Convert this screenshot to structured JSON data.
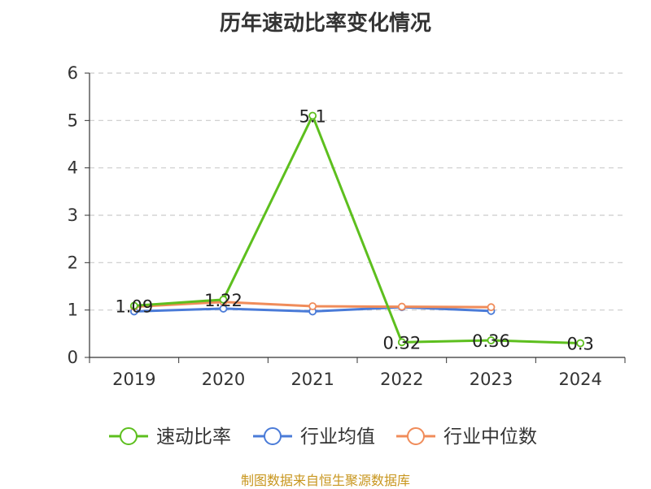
{
  "chart_data": {
    "type": "line",
    "title": "历年速动比率变化情况",
    "categories": [
      "2019",
      "2020",
      "2021",
      "2022",
      "2023",
      "2024"
    ],
    "ylim": [
      0,
      6
    ],
    "yticks": [
      "0",
      "1",
      "2",
      "3",
      "4",
      "5",
      "6"
    ],
    "grid": true,
    "legend_position": "bottom",
    "series": [
      {
        "name": "速动比率",
        "color": "#5dbf1e",
        "values": [
          1.09,
          1.22,
          5.1,
          0.32,
          0.36,
          0.3
        ],
        "labels": [
          "1.09",
          "1.22",
          "5.1",
          "0.32",
          "0.36",
          "0.3"
        ]
      },
      {
        "name": "行业均值",
        "color": "#4a7bd8",
        "values": [
          0.97,
          1.03,
          0.97,
          1.06,
          0.98,
          null
        ]
      },
      {
        "name": "行业中位数",
        "color": "#f08c5a",
        "values": [
          1.07,
          1.17,
          1.08,
          1.07,
          1.06,
          null
        ]
      }
    ]
  },
  "footer": {
    "source": "制图数据来自恒生聚源数据库"
  }
}
